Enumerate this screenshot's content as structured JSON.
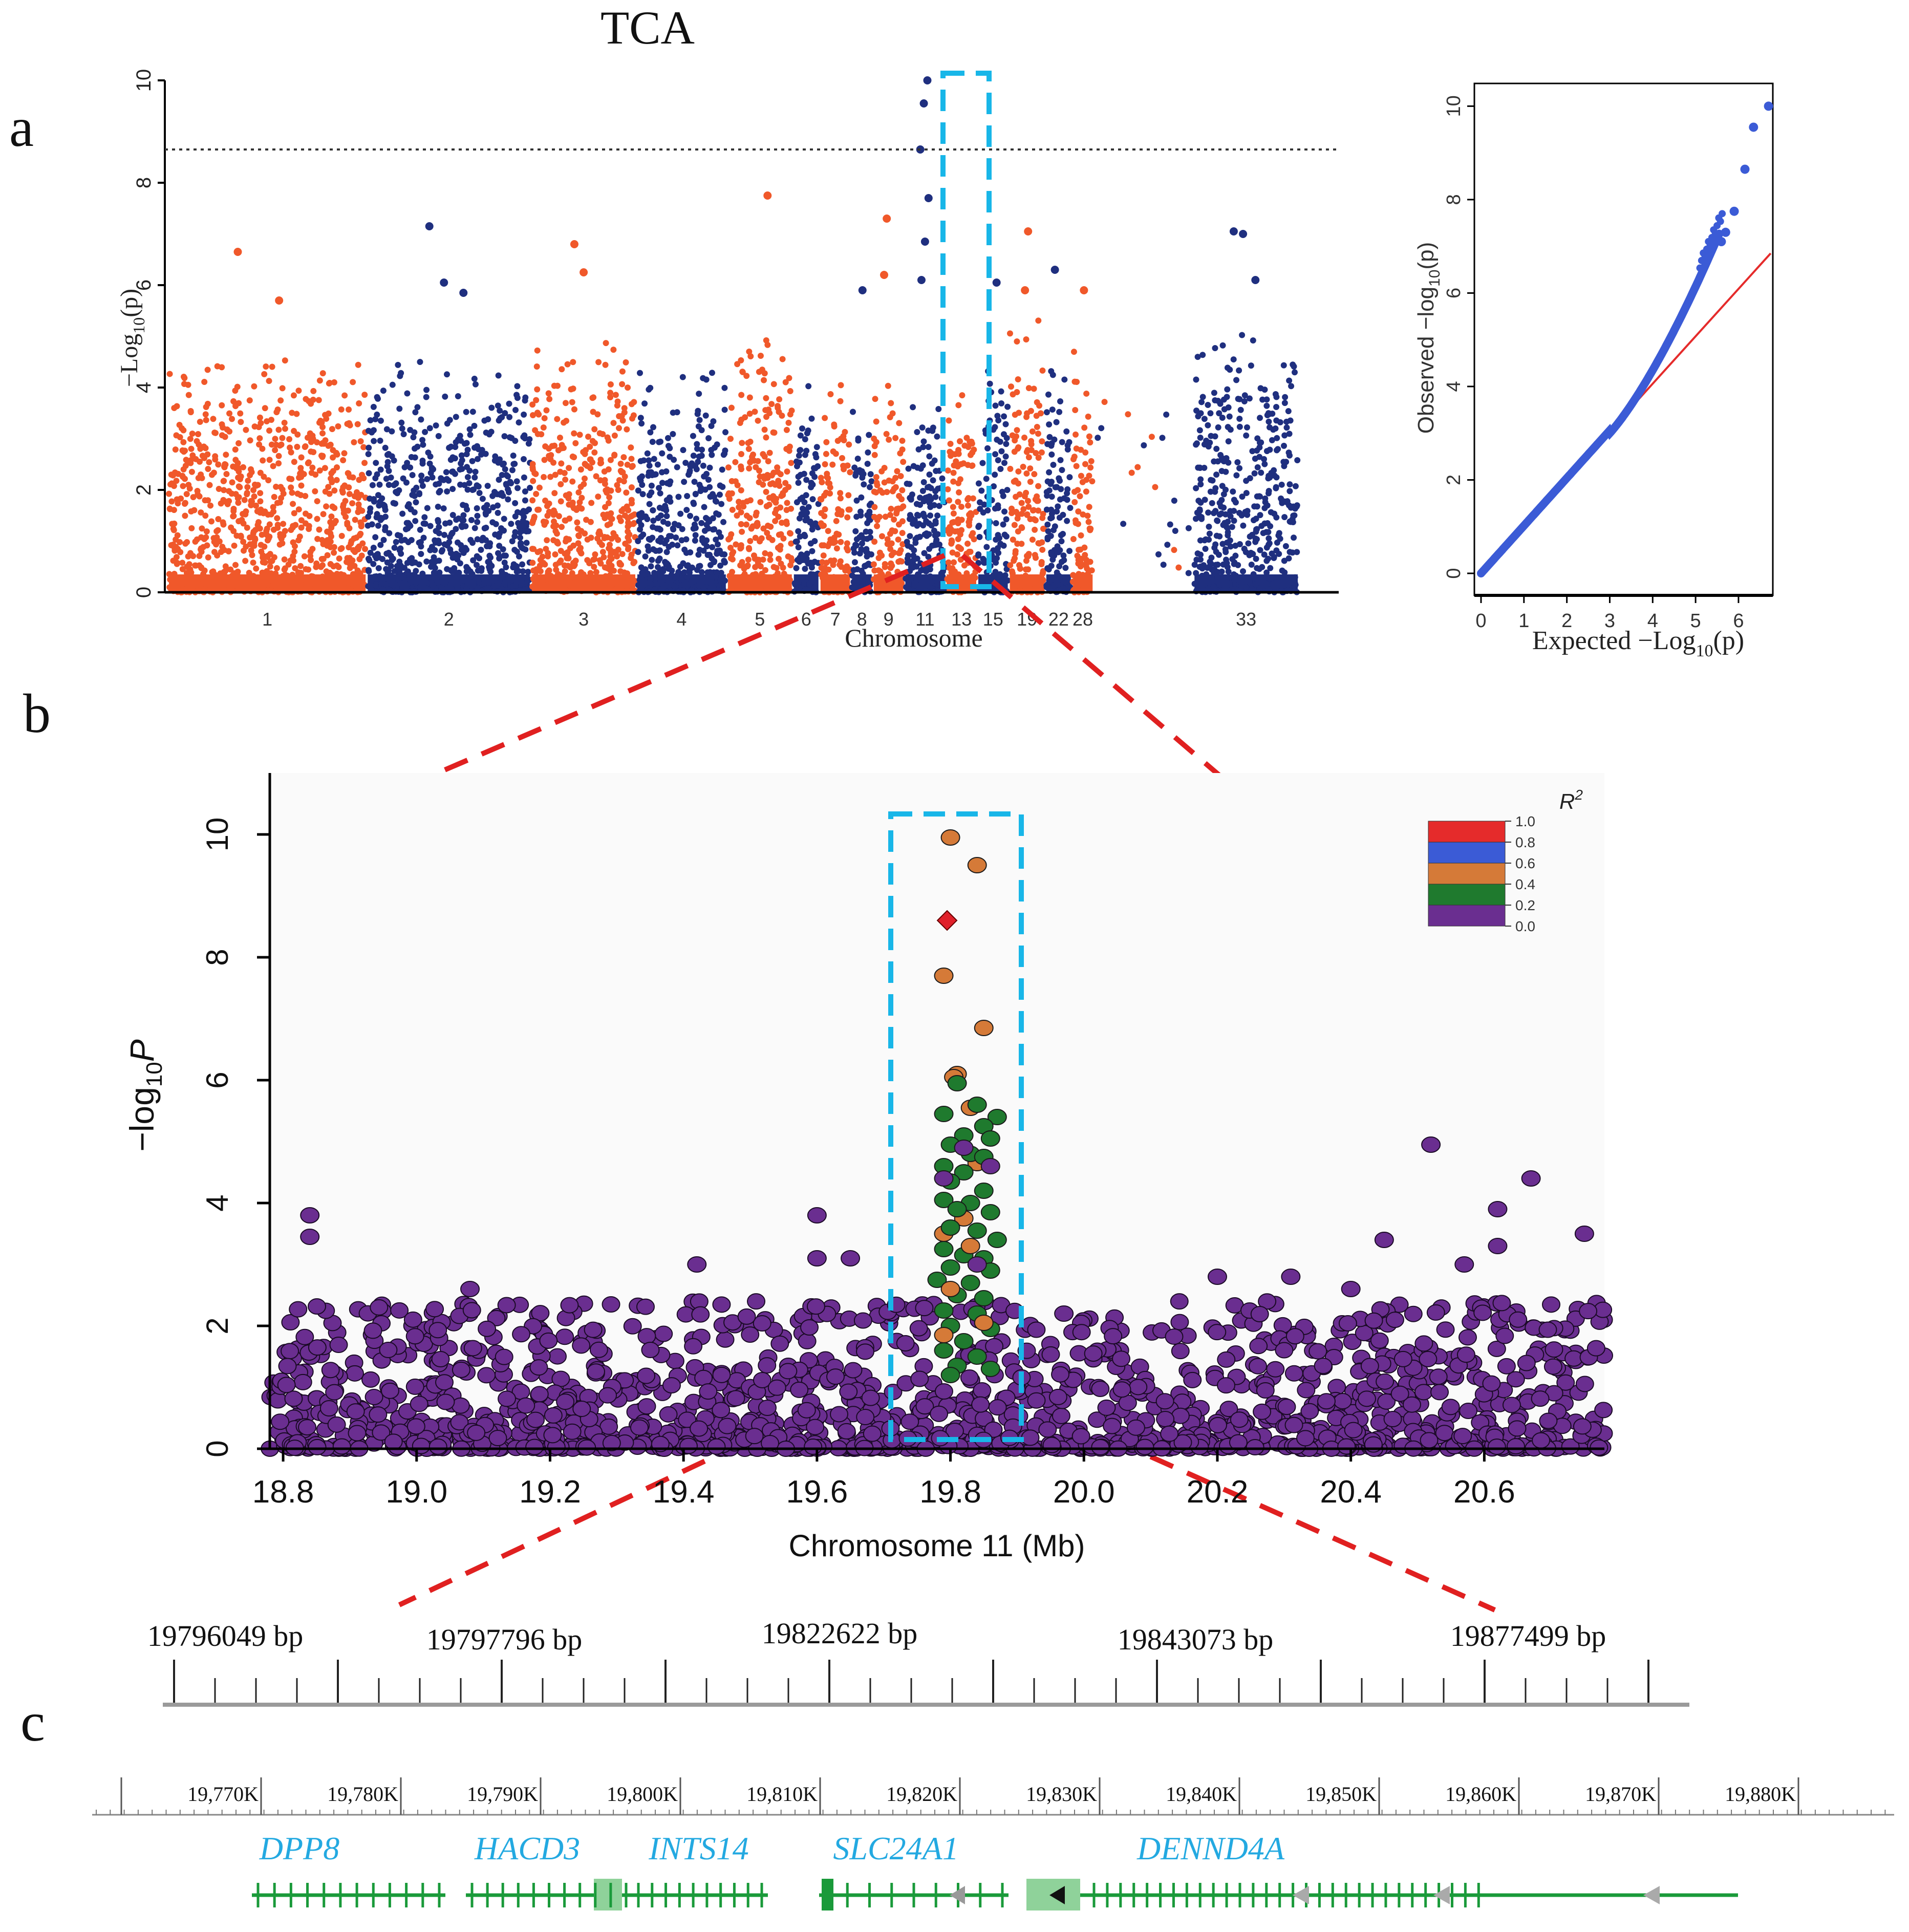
{
  "title": "TCA",
  "panel_labels": {
    "a": "a",
    "b": "b",
    "c": "c"
  },
  "colors": {
    "orange": "#f0582a",
    "navy": "#1f2f7f",
    "qq_blue": "#3b5bd6",
    "qq_line": "#e52b2b",
    "cyan": "#18b6e8",
    "red_dash": "#e02020",
    "purple": "#6a2e90",
    "green_dot": "#1f7a2e",
    "orange_dot": "#d57a38",
    "lead": "#e0202a",
    "gene": "#1a9a3a",
    "gene_label": "#23a9e1",
    "r2": [
      "#e52b2b",
      "#3b5bd6",
      "#d57a38",
      "#1f7a2e",
      "#6a2e90"
    ]
  },
  "chart_data": [
    {
      "id": "manhattan",
      "type": "scatter",
      "xlabel": "Chromosome",
      "ylabel": "−Log",
      "ylabel_sub": "10",
      "ylabel_tail": "(p)",
      "ylim": [
        0,
        10
      ],
      "yticks": [
        "0",
        "2",
        "4",
        "6",
        "8",
        "10"
      ],
      "threshold": 8.65,
      "chromosomes": [
        "1",
        "2",
        "3",
        "4",
        "5",
        "6",
        "7",
        "8",
        "9",
        "11",
        "13",
        "15",
        "19",
        "22",
        "28",
        "33"
      ],
      "chromosome_widths": [
        200,
        165,
        105,
        90,
        65,
        25,
        30,
        20,
        30,
        40,
        30,
        30,
        35,
        25,
        20,
        105
      ],
      "chromosome_peaks": [
        4.9,
        4.7,
        5.3,
        4.6,
        5.2,
        4.2,
        4.2,
        4.2,
        4.5,
        3.9,
        4.6,
        5.0,
        5.4,
        4.8,
        5.2,
        5.3
      ],
      "top_hits": [
        {
          "chr": "1",
          "y": 6.65
        },
        {
          "chr": "1",
          "y": 5.7
        },
        {
          "chr": "2",
          "y": 6.05
        },
        {
          "chr": "2",
          "y": 7.15
        },
        {
          "chr": "2",
          "y": 5.85
        },
        {
          "chr": "3",
          "y": 6.25
        },
        {
          "chr": "3",
          "y": 6.8
        },
        {
          "chr": "5",
          "y": 7.75
        },
        {
          "chr": "8",
          "y": 5.9
        },
        {
          "chr": "9",
          "y": 7.3
        },
        {
          "chr": "9",
          "y": 6.2
        },
        {
          "chr": "11",
          "y": 10.0
        },
        {
          "chr": "11",
          "y": 9.55
        },
        {
          "chr": "11",
          "y": 8.65
        },
        {
          "chr": "11",
          "y": 7.7
        },
        {
          "chr": "11",
          "y": 6.85
        },
        {
          "chr": "11",
          "y": 6.1
        },
        {
          "chr": "15",
          "y": 6.05
        },
        {
          "chr": "19",
          "y": 7.05
        },
        {
          "chr": "19",
          "y": 5.9
        },
        {
          "chr": "22",
          "y": 6.3
        },
        {
          "chr": "28",
          "y": 5.9
        },
        {
          "chr": "33",
          "y": 7.0
        },
        {
          "chr": "33",
          "y": 7.05
        },
        {
          "chr": "33",
          "y": 6.1
        }
      ]
    },
    {
      "id": "qq",
      "type": "scatter",
      "xlabel": "Expected −Log",
      "xlabel_sub": "10",
      "xlabel_tail": "(p)",
      "ylabel": "Observed  −log",
      "ylabel_sub": "10",
      "ylabel_tail": "(p)",
      "xlim": [
        0,
        6.8
      ],
      "ylim": [
        0,
        10.3
      ],
      "xticks": [
        "0",
        "1",
        "2",
        "3",
        "4",
        "5",
        "6"
      ],
      "yticks": [
        "0",
        "2",
        "4",
        "6",
        "8",
        "10"
      ],
      "reference_line": [
        [
          0,
          0
        ],
        [
          6.75,
          6.85
        ]
      ],
      "top_points": [
        [
          6.7,
          10.0
        ],
        [
          6.35,
          9.55
        ],
        [
          6.15,
          8.65
        ],
        [
          5.9,
          7.75
        ],
        [
          5.7,
          7.3
        ],
        [
          5.6,
          7.1
        ]
      ]
    },
    {
      "id": "locuszoom",
      "type": "scatter",
      "xlabel": "Chromosome 11 (Mb)",
      "ylabel": "−log",
      "ylabel_sub": "10",
      "ylabel_tail": "P",
      "xlim": [
        18.78,
        20.78
      ],
      "ylim": [
        0,
        11
      ],
      "xticks": [
        "18.8",
        "19.0",
        "19.2",
        "19.4",
        "19.6",
        "19.8",
        "20.0",
        "20.2",
        "20.4",
        "20.6"
      ],
      "yticks": [
        "0",
        "2",
        "4",
        "6",
        "8",
        "10"
      ],
      "lead_snp": {
        "x": 19.795,
        "y": 8.6
      },
      "highlight_range": [
        19.74,
        19.92
      ],
      "highlight_points": [
        {
          "x": 19.8,
          "y": 9.95,
          "r2": "0.6"
        },
        {
          "x": 19.84,
          "y": 9.5,
          "r2": "0.6"
        },
        {
          "x": 19.79,
          "y": 7.7,
          "r2": "0.6"
        },
        {
          "x": 19.85,
          "y": 6.85,
          "r2": "0.6"
        },
        {
          "x": 19.81,
          "y": 6.1,
          "r2": "0.6"
        },
        {
          "x": 19.805,
          "y": 6.05,
          "r2": "0.6"
        },
        {
          "x": 19.83,
          "y": 5.55,
          "r2": "0.6"
        },
        {
          "x": 19.84,
          "y": 4.65,
          "r2": "0.6"
        },
        {
          "x": 19.82,
          "y": 3.75,
          "r2": "0.6"
        },
        {
          "x": 19.79,
          "y": 3.5,
          "r2": "0.6"
        },
        {
          "x": 19.81,
          "y": 5.95,
          "r2": "0.2"
        },
        {
          "x": 19.84,
          "y": 5.6,
          "r2": "0.2"
        },
        {
          "x": 19.87,
          "y": 5.4,
          "r2": "0.2"
        },
        {
          "x": 19.79,
          "y": 5.45,
          "r2": "0.2"
        },
        {
          "x": 19.85,
          "y": 5.25,
          "r2": "0.2"
        },
        {
          "x": 19.82,
          "y": 5.1,
          "r2": "0.2"
        },
        {
          "x": 19.86,
          "y": 5.05,
          "r2": "0.2"
        },
        {
          "x": 19.8,
          "y": 4.95,
          "r2": "0.2"
        },
        {
          "x": 19.83,
          "y": 4.8,
          "r2": "0.2"
        },
        {
          "x": 19.85,
          "y": 4.75,
          "r2": "0.2"
        },
        {
          "x": 19.79,
          "y": 4.6,
          "r2": "0.2"
        },
        {
          "x": 19.82,
          "y": 4.5,
          "r2": "0.2"
        },
        {
          "x": 19.8,
          "y": 4.35,
          "r2": "0.2"
        },
        {
          "x": 19.85,
          "y": 4.2,
          "r2": "0.2"
        },
        {
          "x": 19.79,
          "y": 4.05,
          "r2": "0.2"
        },
        {
          "x": 19.83,
          "y": 4.0,
          "r2": "0.2"
        },
        {
          "x": 19.81,
          "y": 3.9,
          "r2": "0.2"
        },
        {
          "x": 19.86,
          "y": 3.85,
          "r2": "0.2"
        },
        {
          "x": 19.8,
          "y": 3.6,
          "r2": "0.2"
        },
        {
          "x": 19.84,
          "y": 3.55,
          "r2": "0.2"
        },
        {
          "x": 19.87,
          "y": 3.4,
          "r2": "0.2"
        },
        {
          "x": 19.79,
          "y": 3.25,
          "r2": "0.2"
        },
        {
          "x": 19.82,
          "y": 3.15,
          "r2": "0.2"
        },
        {
          "x": 19.85,
          "y": 3.1,
          "r2": "0.2"
        },
        {
          "x": 19.8,
          "y": 2.95,
          "r2": "0.2"
        },
        {
          "x": 19.86,
          "y": 2.9,
          "r2": "0.2"
        },
        {
          "x": 19.78,
          "y": 2.75,
          "r2": "0.2"
        },
        {
          "x": 19.83,
          "y": 2.7,
          "r2": "0.2"
        },
        {
          "x": 19.81,
          "y": 2.5,
          "r2": "0.2"
        },
        {
          "x": 19.85,
          "y": 2.45,
          "r2": "0.2"
        },
        {
          "x": 19.79,
          "y": 2.25,
          "r2": "0.2"
        },
        {
          "x": 19.84,
          "y": 2.2,
          "r2": "0.2"
        },
        {
          "x": 19.8,
          "y": 2.0,
          "r2": "0.2"
        },
        {
          "x": 19.86,
          "y": 1.95,
          "r2": "0.2"
        },
        {
          "x": 19.82,
          "y": 1.75,
          "r2": "0.2"
        },
        {
          "x": 19.79,
          "y": 1.6,
          "r2": "0.2"
        },
        {
          "x": 19.84,
          "y": 1.5,
          "r2": "0.2"
        },
        {
          "x": 19.81,
          "y": 1.35,
          "r2": "0.2"
        },
        {
          "x": 19.86,
          "y": 1.3,
          "r2": "0.2"
        },
        {
          "x": 19.8,
          "y": 1.2,
          "r2": "0.2"
        },
        {
          "x": 19.83,
          "y": 3.3,
          "r2": "0.6"
        },
        {
          "x": 19.8,
          "y": 2.6,
          "r2": "0.6"
        },
        {
          "x": 19.85,
          "y": 2.05,
          "r2": "0.6"
        },
        {
          "x": 19.79,
          "y": 1.85,
          "r2": "0.6"
        },
        {
          "x": 19.82,
          "y": 4.9,
          "r2": "0.0"
        },
        {
          "x": 19.86,
          "y": 4.6,
          "r2": "0.0"
        },
        {
          "x": 19.79,
          "y": 4.4,
          "r2": "0.0"
        },
        {
          "x": 19.84,
          "y": 3.0,
          "r2": "0.0"
        }
      ],
      "background_hits": [
        {
          "x": 18.84,
          "y": 3.8
        },
        {
          "x": 18.84,
          "y": 3.45
        },
        {
          "x": 19.6,
          "y": 3.8
        },
        {
          "x": 19.6,
          "y": 3.1
        },
        {
          "x": 19.65,
          "y": 3.1
        },
        {
          "x": 19.42,
          "y": 3.0
        },
        {
          "x": 20.52,
          "y": 4.95
        },
        {
          "x": 20.67,
          "y": 4.4
        },
        {
          "x": 20.62,
          "y": 3.9
        },
        {
          "x": 20.45,
          "y": 3.4
        },
        {
          "x": 20.75,
          "y": 3.5
        },
        {
          "x": 20.62,
          "y": 3.3
        },
        {
          "x": 20.57,
          "y": 3.0
        },
        {
          "x": 20.31,
          "y": 2.8
        },
        {
          "x": 20.2,
          "y": 2.8
        },
        {
          "x": 20.4,
          "y": 2.6
        },
        {
          "x": 19.97,
          "y": 2.2
        },
        {
          "x": 19.08,
          "y": 2.6
        }
      ],
      "legend": {
        "title": "R",
        "title_sup": "2",
        "labels": [
          "1.0",
          "0.8",
          "0.6",
          "0.4",
          "0.2",
          "0.0"
        ]
      }
    }
  ],
  "bp_scale": {
    "labels": [
      "19796049 bp",
      "19797796 bp",
      "19822622 bp",
      "19843073 bp",
      "19877499 bp"
    ]
  },
  "genome_scale": {
    "labels": [
      "19,770K",
      "19,780K",
      "19,790K",
      "19,800K",
      "19,810K",
      "19,820K",
      "19,830K",
      "19,840K",
      "19,850K",
      "19,860K",
      "19,870K",
      "19,880K"
    ]
  },
  "genes": [
    "DPP8",
    "HACD3",
    "INTS14",
    "SLC24A1",
    "DENND4A"
  ]
}
